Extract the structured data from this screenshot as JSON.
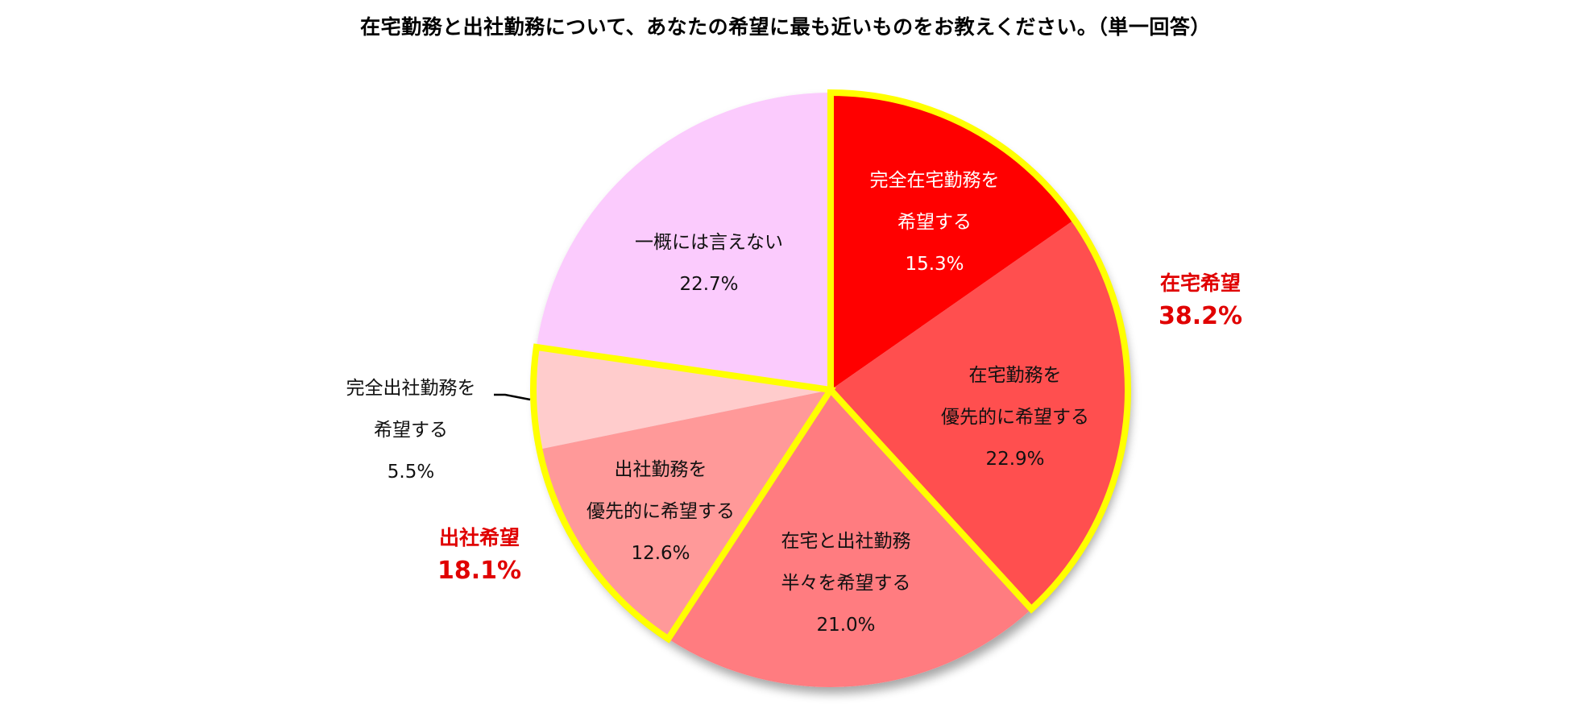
{
  "title": "在宅勤務と出社勤務について、あなたの希望に最も近いものをお教えください。（単一回答）",
  "colors": {
    "full_remote": "#ff0000",
    "prefer_remote": "#ff5050",
    "half_half": "#ff7c80",
    "prefer_office": "#ff9999",
    "full_office": "#ffcccc",
    "cannot_say": "#fbcbfd",
    "highlight": "#ffff00",
    "group_text": "#e00000"
  },
  "slices": [
    {
      "line1": "完全在宅勤務を",
      "line2": "希望する",
      "pct": "15.3%"
    },
    {
      "line1": "在宅勤務を",
      "line2": "優先的に希望する",
      "pct": "22.9%"
    },
    {
      "line1": "在宅と出社勤務",
      "line2": "半々を希望する",
      "pct": "21.0%"
    },
    {
      "line1": "出社勤務を",
      "line2": "優先的に希望する",
      "pct": "12.6%"
    },
    {
      "line1": "完全出社勤務を",
      "line2": "希望する",
      "pct": "5.5%"
    },
    {
      "line1": "一概には言えない",
      "pct": "22.7%"
    }
  ],
  "groups": {
    "remote": {
      "name": "在宅希望",
      "value": "38.2%"
    },
    "office": {
      "name": "出社希望",
      "value": "18.1%"
    }
  },
  "chart_data": {
    "type": "pie",
    "title": "在宅勤務と出社勤務について、あなたの希望に最も近いものをお教えください。（単一回答）",
    "categories": [
      "完全在宅勤務を希望する",
      "在宅勤務を優先的に希望する",
      "在宅と出社勤務半々を希望する",
      "出社勤務を優先的に希望する",
      "完全出社勤務を希望する",
      "一概には言えない"
    ],
    "values": [
      15.3,
      22.9,
      21.0,
      12.6,
      5.5,
      22.7
    ],
    "unit": "%",
    "start_angle": "12 o'clock, clockwise",
    "annotations": [
      {
        "text": "在宅希望 38.2%",
        "covers": [
          "完全在宅勤務を希望する",
          "在宅勤務を優先的に希望する"
        ],
        "highlight": "yellow outline"
      },
      {
        "text": "出社希望 18.1%",
        "covers": [
          "出社勤務を優先的に希望する",
          "完全出社勤務を希望する"
        ],
        "highlight": "yellow outline"
      }
    ],
    "legend": "none (data labels on slices)"
  }
}
